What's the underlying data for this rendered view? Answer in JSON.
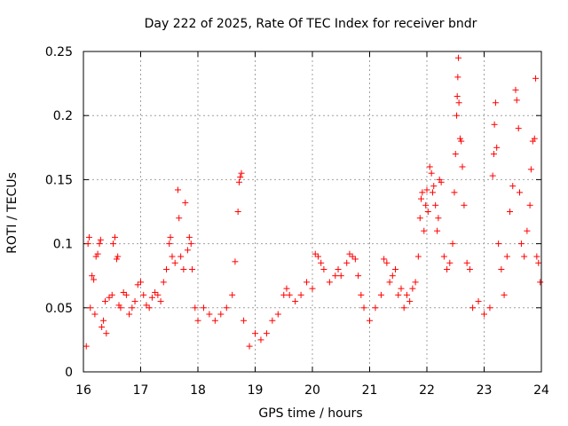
{
  "chart_data": {
    "type": "scatter",
    "title": "Day 222 of 2025, Rate Of TEC Index for receiver bndr",
    "xlabel": "GPS time / hours",
    "ylabel": "ROTI / TECUs",
    "xlim": [
      16,
      24
    ],
    "ylim": [
      0,
      0.25
    ],
    "x_ticks": [
      16,
      17,
      18,
      19,
      20,
      21,
      22,
      23,
      24
    ],
    "x_tick_labels": [
      "16",
      "17",
      "18",
      "19",
      "20",
      "21",
      "22",
      "23",
      "24"
    ],
    "y_ticks": [
      0,
      0.05,
      0.1,
      0.15,
      0.2,
      0.25
    ],
    "y_tick_labels": [
      "0",
      "0.05",
      "0.1",
      "0.15",
      "0.2",
      "0.25"
    ],
    "grid": true,
    "marker": "+",
    "marker_color": "#ff0000",
    "series": [
      {
        "name": "ROTI",
        "color": "#ff0000",
        "points": [
          [
            16.05,
            0.02
          ],
          [
            16.08,
            0.1
          ],
          [
            16.1,
            0.105
          ],
          [
            16.12,
            0.05
          ],
          [
            16.15,
            0.075
          ],
          [
            16.18,
            0.072
          ],
          [
            16.2,
            0.045
          ],
          [
            16.22,
            0.09
          ],
          [
            16.25,
            0.092
          ],
          [
            16.28,
            0.1
          ],
          [
            16.3,
            0.103
          ],
          [
            16.32,
            0.035
          ],
          [
            16.35,
            0.04
          ],
          [
            16.38,
            0.055
          ],
          [
            16.4,
            0.03
          ],
          [
            16.45,
            0.058
          ],
          [
            16.5,
            0.06
          ],
          [
            16.52,
            0.1
          ],
          [
            16.55,
            0.105
          ],
          [
            16.58,
            0.088
          ],
          [
            16.6,
            0.09
          ],
          [
            16.62,
            0.052
          ],
          [
            16.65,
            0.05
          ],
          [
            16.7,
            0.062
          ],
          [
            16.75,
            0.06
          ],
          [
            16.8,
            0.045
          ],
          [
            16.85,
            0.05
          ],
          [
            16.9,
            0.055
          ],
          [
            16.95,
            0.068
          ],
          [
            17.0,
            0.07
          ],
          [
            17.05,
            0.06
          ],
          [
            17.1,
            0.052
          ],
          [
            17.15,
            0.05
          ],
          [
            17.2,
            0.058
          ],
          [
            17.25,
            0.062
          ],
          [
            17.3,
            0.06
          ],
          [
            17.35,
            0.055
          ],
          [
            17.4,
            0.07
          ],
          [
            17.45,
            0.08
          ],
          [
            17.5,
            0.1
          ],
          [
            17.52,
            0.105
          ],
          [
            17.55,
            0.09
          ],
          [
            17.6,
            0.085
          ],
          [
            17.65,
            0.142
          ],
          [
            17.67,
            0.12
          ],
          [
            17.7,
            0.09
          ],
          [
            17.75,
            0.08
          ],
          [
            17.78,
            0.132
          ],
          [
            17.82,
            0.095
          ],
          [
            17.85,
            0.105
          ],
          [
            17.88,
            0.1
          ],
          [
            17.9,
            0.08
          ],
          [
            17.95,
            0.05
          ],
          [
            18.0,
            0.04
          ],
          [
            18.1,
            0.05
          ],
          [
            18.2,
            0.045
          ],
          [
            18.3,
            0.04
          ],
          [
            18.4,
            0.045
          ],
          [
            18.5,
            0.05
          ],
          [
            18.6,
            0.06
          ],
          [
            18.65,
            0.086
          ],
          [
            18.7,
            0.125
          ],
          [
            18.72,
            0.148
          ],
          [
            18.74,
            0.152
          ],
          [
            18.76,
            0.155
          ],
          [
            18.8,
            0.04
          ],
          [
            18.9,
            0.02
          ],
          [
            19.0,
            0.03
          ],
          [
            19.1,
            0.025
          ],
          [
            19.2,
            0.03
          ],
          [
            19.3,
            0.04
          ],
          [
            19.4,
            0.045
          ],
          [
            19.5,
            0.06
          ],
          [
            19.55,
            0.065
          ],
          [
            19.6,
            0.06
          ],
          [
            19.7,
            0.055
          ],
          [
            19.8,
            0.06
          ],
          [
            19.9,
            0.07
          ],
          [
            20.0,
            0.065
          ],
          [
            20.05,
            0.092
          ],
          [
            20.1,
            0.09
          ],
          [
            20.15,
            0.085
          ],
          [
            20.2,
            0.08
          ],
          [
            20.3,
            0.07
          ],
          [
            20.4,
            0.075
          ],
          [
            20.45,
            0.08
          ],
          [
            20.5,
            0.075
          ],
          [
            20.6,
            0.085
          ],
          [
            20.65,
            0.092
          ],
          [
            20.7,
            0.09
          ],
          [
            20.75,
            0.088
          ],
          [
            20.8,
            0.075
          ],
          [
            20.85,
            0.06
          ],
          [
            20.9,
            0.05
          ],
          [
            21.0,
            0.04
          ],
          [
            21.1,
            0.05
          ],
          [
            21.2,
            0.06
          ],
          [
            21.25,
            0.088
          ],
          [
            21.3,
            0.085
          ],
          [
            21.35,
            0.07
          ],
          [
            21.4,
            0.075
          ],
          [
            21.45,
            0.08
          ],
          [
            21.5,
            0.06
          ],
          [
            21.55,
            0.065
          ],
          [
            21.6,
            0.05
          ],
          [
            21.65,
            0.06
          ],
          [
            21.7,
            0.055
          ],
          [
            21.75,
            0.065
          ],
          [
            21.8,
            0.07
          ],
          [
            21.85,
            0.09
          ],
          [
            21.88,
            0.12
          ],
          [
            21.9,
            0.135
          ],
          [
            21.92,
            0.14
          ],
          [
            21.95,
            0.11
          ],
          [
            21.98,
            0.13
          ],
          [
            22.0,
            0.142
          ],
          [
            22.02,
            0.125
          ],
          [
            22.05,
            0.16
          ],
          [
            22.08,
            0.155
          ],
          [
            22.1,
            0.14
          ],
          [
            22.12,
            0.145
          ],
          [
            22.15,
            0.13
          ],
          [
            22.18,
            0.11
          ],
          [
            22.2,
            0.12
          ],
          [
            22.22,
            0.15
          ],
          [
            22.25,
            0.148
          ],
          [
            22.3,
            0.09
          ],
          [
            22.35,
            0.08
          ],
          [
            22.4,
            0.085
          ],
          [
            22.45,
            0.1
          ],
          [
            22.48,
            0.14
          ],
          [
            22.5,
            0.17
          ],
          [
            22.52,
            0.2
          ],
          [
            22.53,
            0.215
          ],
          [
            22.54,
            0.23
          ],
          [
            22.55,
            0.245
          ],
          [
            22.56,
            0.21
          ],
          [
            22.58,
            0.182
          ],
          [
            22.6,
            0.18
          ],
          [
            22.62,
            0.16
          ],
          [
            22.65,
            0.13
          ],
          [
            22.7,
            0.085
          ],
          [
            22.75,
            0.08
          ],
          [
            22.8,
            0.05
          ],
          [
            22.9,
            0.055
          ],
          [
            23.0,
            0.045
          ],
          [
            23.1,
            0.05
          ],
          [
            23.15,
            0.153
          ],
          [
            23.17,
            0.17
          ],
          [
            23.18,
            0.193
          ],
          [
            23.2,
            0.21
          ],
          [
            23.22,
            0.175
          ],
          [
            23.25,
            0.1
          ],
          [
            23.3,
            0.08
          ],
          [
            23.35,
            0.06
          ],
          [
            23.4,
            0.09
          ],
          [
            23.45,
            0.125
          ],
          [
            23.5,
            0.145
          ],
          [
            23.55,
            0.22
          ],
          [
            23.57,
            0.212
          ],
          [
            23.6,
            0.19
          ],
          [
            23.62,
            0.14
          ],
          [
            23.65,
            0.1
          ],
          [
            23.7,
            0.09
          ],
          [
            23.75,
            0.11
          ],
          [
            23.8,
            0.13
          ],
          [
            23.82,
            0.158
          ],
          [
            23.85,
            0.18
          ],
          [
            23.88,
            0.182
          ],
          [
            23.9,
            0.229
          ],
          [
            23.92,
            0.09
          ],
          [
            23.95,
            0.085
          ],
          [
            23.98,
            0.07
          ]
        ]
      }
    ]
  }
}
